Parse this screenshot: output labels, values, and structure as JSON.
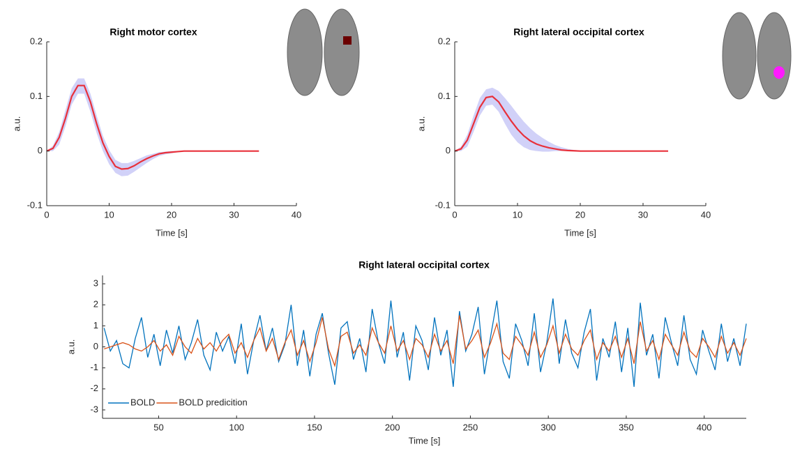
{
  "chart_data": [
    {
      "type": "line",
      "title": "Right motor cortex",
      "xlabel": "Time [s]",
      "ylabel": "a.u.",
      "x": [
        0,
        1,
        2,
        3,
        4,
        5,
        6,
        7,
        8,
        9,
        10,
        11,
        12,
        13,
        14,
        15,
        16,
        17,
        18,
        19,
        20,
        21,
        22,
        23,
        24,
        25,
        26,
        27,
        28,
        29,
        30,
        31,
        32,
        33,
        34
      ],
      "values": [
        0,
        0.005,
        0.025,
        0.06,
        0.1,
        0.12,
        0.12,
        0.09,
        0.05,
        0.015,
        -0.01,
        -0.028,
        -0.033,
        -0.032,
        -0.027,
        -0.02,
        -0.014,
        -0.009,
        -0.005,
        -0.003,
        -0.002,
        -0.001,
        0,
        0,
        0,
        0,
        0,
        0,
        0,
        0,
        0,
        0,
        0,
        0,
        0
      ],
      "band_upper": [
        0,
        0.01,
        0.035,
        0.075,
        0.115,
        0.133,
        0.133,
        0.105,
        0.065,
        0.028,
        0.002,
        -0.016,
        -0.022,
        -0.022,
        -0.018,
        -0.013,
        -0.008,
        -0.005,
        -0.002,
        -0.001,
        0,
        0,
        0,
        0,
        0,
        0,
        0,
        0,
        0,
        0,
        0,
        0,
        0,
        0,
        0
      ],
      "band_lower": [
        0,
        0,
        0.012,
        0.045,
        0.085,
        0.105,
        0.105,
        0.072,
        0.033,
        0,
        -0.024,
        -0.04,
        -0.046,
        -0.045,
        -0.038,
        -0.03,
        -0.022,
        -0.015,
        -0.009,
        -0.006,
        -0.004,
        -0.002,
        0,
        0,
        0,
        0,
        0,
        0,
        0,
        0,
        0,
        0,
        0,
        0,
        0
      ],
      "color": "#e8303a",
      "band_color": "#c9c9f7",
      "xlim": [
        0,
        40
      ],
      "ylim": [
        -0.1,
        0.2
      ],
      "xticks": [
        0,
        10,
        20,
        30,
        40
      ],
      "yticks": [
        -0.1,
        0,
        0.1,
        0.2
      ]
    },
    {
      "type": "line",
      "title": "Right lateral occipital cortex",
      "xlabel": "Time [s]",
      "ylabel": "a.u.",
      "x": [
        0,
        1,
        2,
        3,
        4,
        5,
        6,
        7,
        8,
        9,
        10,
        11,
        12,
        13,
        14,
        15,
        16,
        17,
        18,
        19,
        20,
        21,
        22,
        23,
        24,
        25,
        26,
        27,
        28,
        29,
        30,
        31,
        32,
        33,
        34
      ],
      "values": [
        0,
        0.004,
        0.02,
        0.05,
        0.08,
        0.098,
        0.1,
        0.09,
        0.072,
        0.055,
        0.04,
        0.028,
        0.019,
        0.013,
        0.009,
        0.006,
        0.004,
        0.002,
        0.001,
        0.0005,
        0,
        0,
        0,
        0,
        0,
        0,
        0,
        0,
        0,
        0,
        0,
        0,
        0,
        0,
        0
      ],
      "band_upper": [
        0,
        0.008,
        0.03,
        0.065,
        0.097,
        0.113,
        0.116,
        0.11,
        0.097,
        0.083,
        0.068,
        0.054,
        0.042,
        0.032,
        0.024,
        0.017,
        0.011,
        0.007,
        0.004,
        0.002,
        0.001,
        0,
        0,
        0,
        0,
        0,
        0,
        0,
        0,
        0,
        0,
        0,
        0,
        0,
        0
      ],
      "band_lower": [
        0,
        0,
        0.008,
        0.035,
        0.065,
        0.083,
        0.085,
        0.072,
        0.05,
        0.03,
        0.016,
        0.007,
        0.002,
        0,
        -0.001,
        -0.001,
        0,
        0,
        0,
        0,
        0,
        0,
        0,
        0,
        0,
        0,
        0,
        0,
        0,
        0,
        0,
        0,
        0,
        0,
        0
      ],
      "color": "#e8303a",
      "band_color": "#c9c9f7",
      "xlim": [
        0,
        40
      ],
      "ylim": [
        -0.1,
        0.2
      ],
      "xticks": [
        0,
        10,
        20,
        30,
        40
      ],
      "yticks": [
        -0.1,
        0,
        0.1,
        0.2
      ]
    },
    {
      "type": "line",
      "title": "Right lateral occipital cortex",
      "xlabel": "Time [s]",
      "ylabel": "a.u.",
      "x": [
        15,
        19,
        23,
        27,
        31,
        35,
        39,
        43,
        47,
        51,
        55,
        59,
        63,
        67,
        71,
        75,
        79,
        83,
        87,
        91,
        95,
        99,
        103,
        107,
        111,
        115,
        119,
        123,
        127,
        131,
        135,
        139,
        143,
        147,
        151,
        155,
        159,
        163,
        167,
        171,
        175,
        179,
        183,
        187,
        191,
        195,
        199,
        203,
        207,
        211,
        215,
        219,
        223,
        227,
        231,
        235,
        239,
        243,
        247,
        251,
        255,
        259,
        263,
        267,
        271,
        275,
        279,
        283,
        287,
        291,
        295,
        299,
        303,
        307,
        311,
        315,
        319,
        323,
        327,
        331,
        335,
        339,
        343,
        347,
        351,
        355,
        359,
        363,
        367,
        371,
        375,
        379,
        383,
        387,
        391,
        395,
        399,
        403,
        407,
        411,
        415,
        419,
        423,
        427
      ],
      "series": [
        {
          "name": "BOLD",
          "color": "#0072bd",
          "values": [
            0.9,
            -0.2,
            0.3,
            -0.8,
            -1.0,
            0.4,
            1.4,
            -0.5,
            0.6,
            -0.9,
            0.8,
            -0.3,
            1.0,
            -0.6,
            0.2,
            1.3,
            -0.4,
            -1.1,
            0.7,
            -0.2,
            0.5,
            -0.8,
            1.1,
            -1.3,
            0.3,
            1.5,
            -0.2,
            0.9,
            -0.7,
            0.1,
            2.0,
            -0.9,
            0.8,
            -1.4,
            0.6,
            1.6,
            -0.3,
            -1.8,
            0.9,
            1.2,
            -0.6,
            0.4,
            -1.2,
            1.8,
            0.2,
            -0.8,
            2.2,
            -0.5,
            0.7,
            -1.6,
            1.0,
            0.3,
            -1.1,
            1.4,
            -0.4,
            0.8,
            -1.9,
            1.7,
            -0.2,
            0.6,
            1.9,
            -1.3,
            0.5,
            2.2,
            -0.7,
            -1.5,
            1.1,
            0.3,
            -0.9,
            1.6,
            -1.2,
            0.2,
            2.3,
            -0.8,
            1.3,
            -0.3,
            -1.0,
            0.7,
            1.8,
            -1.6,
            0.4,
            -0.5,
            1.2,
            -1.2,
            0.9,
            -1.9,
            2.1,
            -0.4,
            0.6,
            -1.5,
            1.4,
            0.2,
            -0.9,
            1.5,
            -0.6,
            -1.3,
            0.8,
            -0.2,
            -1.1,
            1.1,
            -0.7,
            0.4,
            -0.9,
            1.1
          ]
        },
        {
          "name": "BOLD predicition",
          "color": "#d95319",
          "values": [
            -0.1,
            0.0,
            0.1,
            0.2,
            0.1,
            -0.1,
            -0.2,
            0.0,
            0.3,
            -0.2,
            0.1,
            -0.4,
            0.5,
            0.0,
            -0.3,
            0.4,
            -0.1,
            0.2,
            -0.2,
            0.3,
            0.6,
            -0.3,
            0.2,
            -0.5,
            0.3,
            0.9,
            -0.2,
            0.4,
            -0.6,
            0.2,
            0.8,
            -0.4,
            0.3,
            -0.7,
            0.2,
            1.4,
            -0.1,
            -0.9,
            0.5,
            0.7,
            -0.3,
            0.1,
            -0.4,
            0.9,
            0.2,
            -0.3,
            1.0,
            -0.2,
            0.3,
            -0.6,
            0.4,
            0.1,
            -0.5,
            0.6,
            -0.2,
            0.3,
            -0.8,
            1.5,
            -0.1,
            0.3,
            0.8,
            -0.5,
            0.2,
            1.1,
            -0.3,
            -0.6,
            0.5,
            0.1,
            -0.4,
            0.7,
            -0.5,
            0.1,
            1.0,
            -0.3,
            0.6,
            -0.1,
            -0.4,
            0.3,
            0.8,
            -0.6,
            0.2,
            -0.2,
            0.5,
            -0.5,
            0.4,
            -0.8,
            1.2,
            -0.2,
            0.3,
            -0.6,
            0.6,
            0.1,
            -0.4,
            0.7,
            -0.2,
            -0.5,
            0.4,
            0.0,
            -0.5,
            0.5,
            -0.3,
            0.2,
            -0.4,
            0.4
          ]
        }
      ],
      "legend": "lower left",
      "xlim": [
        14,
        427
      ],
      "ylim": [
        -3.4,
        3.4
      ],
      "xticks": [
        50,
        100,
        150,
        200,
        250,
        300,
        350,
        400
      ],
      "yticks": [
        -3,
        -2,
        -1,
        0,
        1,
        2,
        3
      ]
    }
  ]
}
